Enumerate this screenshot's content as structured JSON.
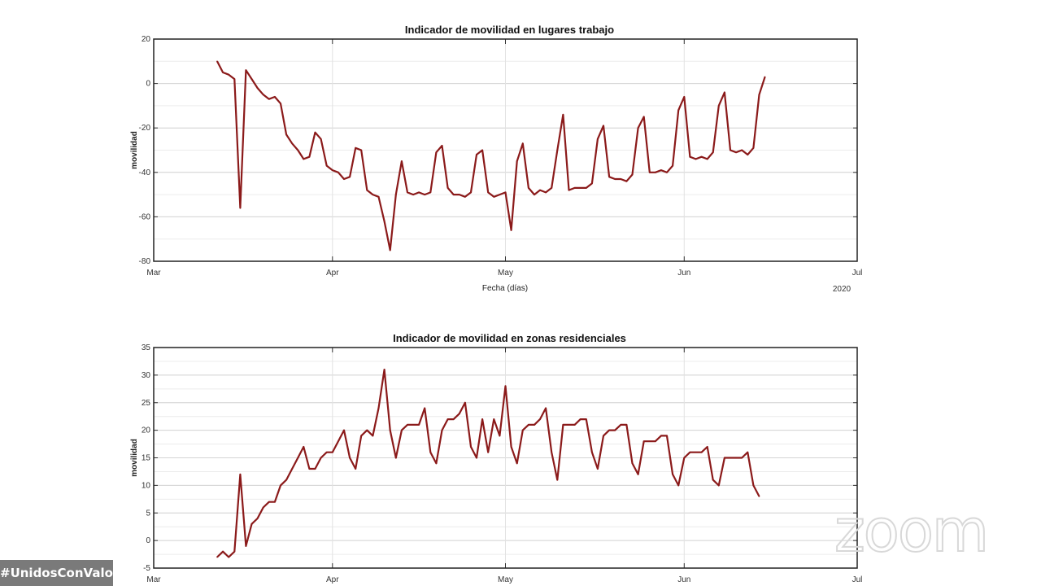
{
  "chart_data": [
    {
      "type": "line",
      "title": "Indicador de movilidad en lugares trabajo",
      "xlabel": "Fecha (días)",
      "ylabel": "movilidad",
      "year_label": "2020",
      "ylim": [
        -80,
        20
      ],
      "yticks": [
        -80,
        -60,
        -40,
        -20,
        0,
        20
      ],
      "xticks": [
        "Mar",
        "Apr",
        "May",
        "Jun",
        "Jul"
      ],
      "grid": true,
      "color": "#8b1a1a",
      "start_date": "2020-03-12",
      "values": [
        10,
        5,
        4,
        2,
        -56,
        6,
        2,
        -2,
        -5,
        -7,
        -6,
        -9,
        -23,
        -27,
        -30,
        -34,
        -33,
        -22,
        -25,
        -37,
        -39,
        -40,
        -43,
        -42,
        -29,
        -30,
        -48,
        -50,
        -51,
        -62,
        -75,
        -50,
        -35,
        -49,
        -50,
        -49,
        -50,
        -49,
        -31,
        -28,
        -47,
        -50,
        -50,
        -51,
        -49,
        -32,
        -30,
        -49,
        -51,
        -50,
        -49,
        -66,
        -35,
        -27,
        -47,
        -50,
        -48,
        -49,
        -47,
        -30,
        -14,
        -48,
        -47,
        -47,
        -47,
        -45,
        -25,
        -19,
        -42,
        -43,
        -43,
        -44,
        -41,
        -20,
        -15,
        -40,
        -40,
        -39,
        -40,
        -37,
        -12,
        -6,
        -33,
        -34,
        -33,
        -34,
        -31,
        -10,
        -4,
        -30,
        -31,
        -30,
        -32,
        -29,
        -5,
        3
      ]
    },
    {
      "type": "line",
      "title": "Indicador de movilidad en zonas residenciales",
      "xlabel": "",
      "ylabel": "movilidad",
      "ylim": [
        -5,
        35
      ],
      "yticks": [
        -5,
        0,
        5,
        10,
        15,
        20,
        25,
        30,
        35
      ],
      "xticks": [
        "Mar",
        "Apr",
        "May",
        "Jun",
        "Jul"
      ],
      "grid": true,
      "color": "#8b1a1a",
      "start_date": "2020-03-12",
      "values": [
        -3,
        -2,
        -3,
        -2,
        12,
        -1,
        3,
        4,
        6,
        7,
        7,
        10,
        11,
        13,
        15,
        17,
        13,
        13,
        15,
        16,
        16,
        18,
        20,
        15,
        13,
        19,
        20,
        19,
        24,
        31,
        20,
        15,
        20,
        21,
        21,
        21,
        24,
        16,
        14,
        20,
        22,
        22,
        23,
        25,
        17,
        15,
        22,
        16,
        22,
        19,
        28,
        17,
        14,
        20,
        21,
        21,
        22,
        24,
        16,
        11,
        21,
        21,
        21,
        22,
        22,
        16,
        13,
        19,
        20,
        20,
        21,
        21,
        14,
        12,
        18,
        18,
        18,
        19,
        19,
        12,
        10,
        15,
        16,
        16,
        16,
        17,
        11,
        10,
        15,
        15,
        15,
        15,
        16,
        10,
        8
      ]
    }
  ],
  "overlay": {
    "hashtag": "#UnidosConValor",
    "watermark": "zoom"
  }
}
